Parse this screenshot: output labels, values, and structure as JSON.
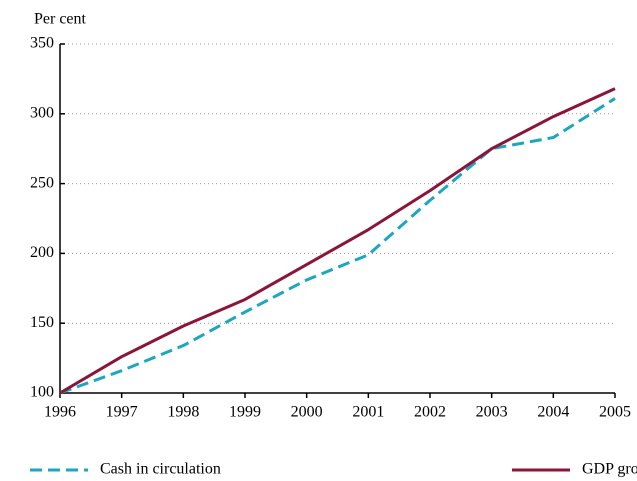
{
  "chart_data": {
    "type": "line",
    "y_axis_label": "Per cent",
    "x": [
      1996,
      1997,
      1998,
      1999,
      2000,
      2001,
      2002,
      2003,
      2004,
      2005
    ],
    "series": [
      {
        "name": "Cash in circulation",
        "color": "#1ba6c2",
        "dash": true,
        "values": [
          100,
          116,
          134,
          158,
          181,
          199,
          238,
          275,
          283,
          311
        ]
      },
      {
        "name": "GDP growth",
        "color": "#8b1538",
        "dash": false,
        "values": [
          100,
          126,
          148,
          167,
          192,
          217,
          245,
          275,
          298,
          318
        ]
      }
    ],
    "xlim": [
      1996,
      2005
    ],
    "xticks": [
      1996,
      1997,
      1998,
      1999,
      2000,
      2001,
      2002,
      2003,
      2004,
      2005
    ],
    "ylim": [
      100,
      350
    ],
    "yticks": [
      100,
      150,
      200,
      250,
      300,
      350
    ],
    "grid": true,
    "legend": "bottom"
  }
}
